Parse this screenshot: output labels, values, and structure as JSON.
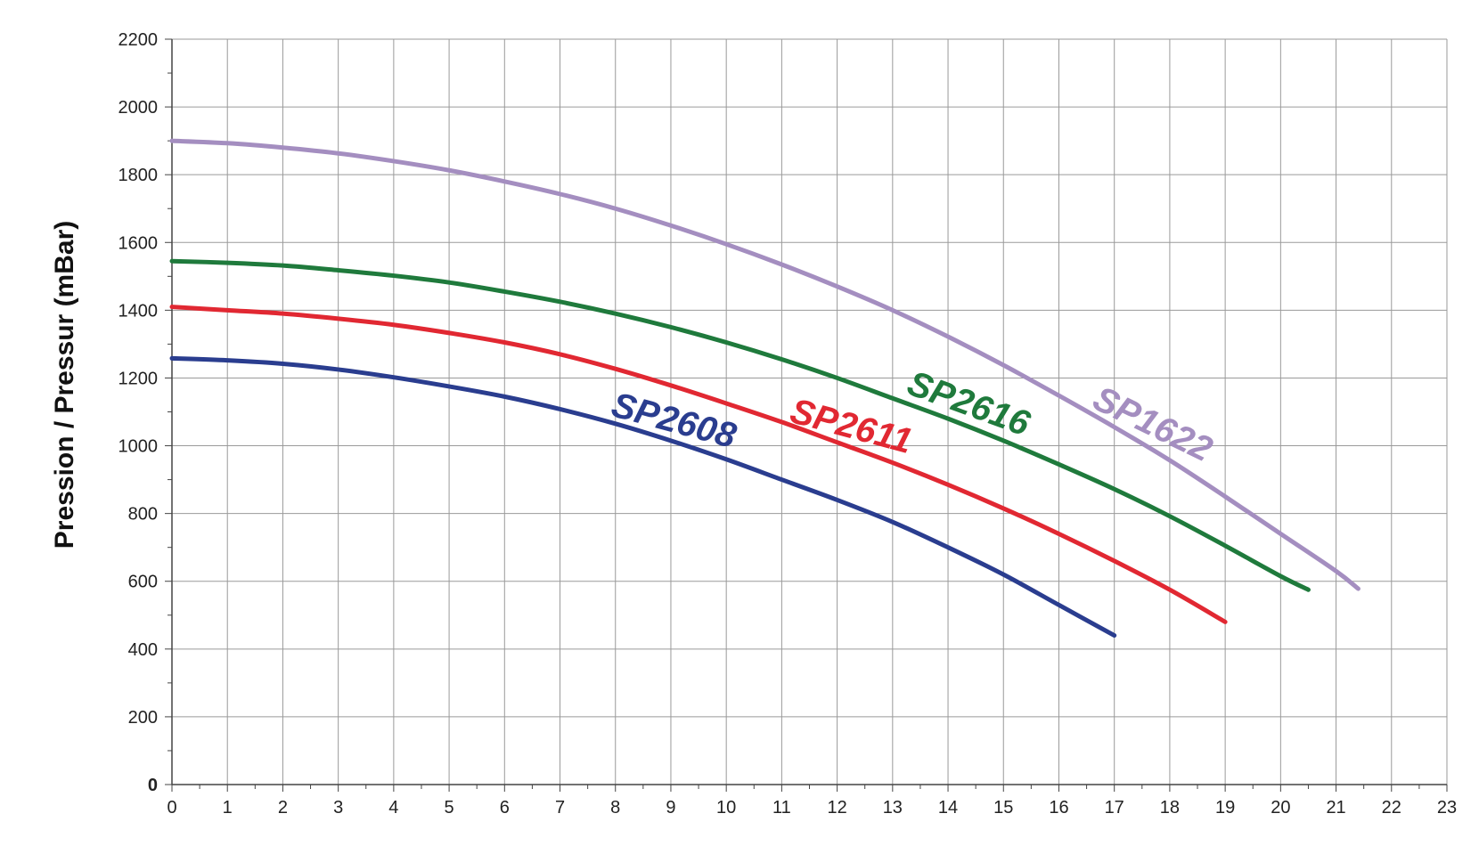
{
  "chart_data": {
    "type": "line",
    "title": "",
    "xlabel": "",
    "ylabel": "Pression / Pressur (mBar)",
    "xlim": [
      0,
      23
    ],
    "ylim": [
      0,
      2200
    ],
    "x_ticks": [
      0,
      1,
      2,
      3,
      4,
      5,
      6,
      7,
      8,
      9,
      10,
      11,
      12,
      13,
      14,
      15,
      16,
      17,
      18,
      19,
      20,
      21,
      22,
      23
    ],
    "y_ticks": [
      0,
      200,
      400,
      600,
      800,
      1000,
      1200,
      1400,
      1600,
      1800,
      2000,
      2200
    ],
    "grid": true,
    "legend": "inline-labels",
    "series": [
      {
        "name": "SP2608",
        "color": "#2a3d8f",
        "x": [
          0,
          1,
          2,
          3,
          4,
          5,
          6,
          7,
          8,
          9,
          10,
          11,
          12,
          13,
          14,
          15,
          16,
          17
        ],
        "y": [
          1258,
          1252,
          1242,
          1225,
          1202,
          1175,
          1145,
          1108,
          1065,
          1015,
          960,
          900,
          840,
          775,
          700,
          620,
          530,
          440
        ]
      },
      {
        "name": "SP2611",
        "color": "#e12832",
        "x": [
          0,
          1,
          2,
          3,
          4,
          5,
          6,
          7,
          8,
          9,
          10,
          11,
          12,
          13,
          14,
          15,
          16,
          17,
          18,
          19
        ],
        "y": [
          1410,
          1400,
          1390,
          1375,
          1357,
          1333,
          1305,
          1270,
          1227,
          1178,
          1125,
          1070,
          1010,
          950,
          885,
          815,
          740,
          660,
          575,
          480
        ]
      },
      {
        "name": "SP2616",
        "color": "#1f7a3c",
        "x": [
          0,
          1,
          2,
          3,
          4,
          5,
          6,
          7,
          8,
          9,
          10,
          11,
          12,
          13,
          14,
          15,
          16,
          17,
          18,
          19,
          20,
          20.5
        ],
        "y": [
          1545,
          1540,
          1532,
          1518,
          1502,
          1482,
          1455,
          1425,
          1390,
          1350,
          1305,
          1255,
          1200,
          1140,
          1080,
          1015,
          945,
          872,
          792,
          705,
          615,
          575
        ]
      },
      {
        "name": "SP1622",
        "color": "#a48ec0",
        "x": [
          0,
          1,
          2,
          3,
          4,
          5,
          6,
          7,
          8,
          9,
          10,
          11,
          12,
          13,
          14,
          15,
          16,
          17,
          18,
          19,
          20,
          21,
          21.4
        ],
        "y": [
          1900,
          1893,
          1880,
          1863,
          1840,
          1813,
          1780,
          1743,
          1700,
          1650,
          1595,
          1535,
          1470,
          1400,
          1322,
          1238,
          1148,
          1055,
          957,
          850,
          740,
          630,
          578
        ]
      }
    ]
  }
}
